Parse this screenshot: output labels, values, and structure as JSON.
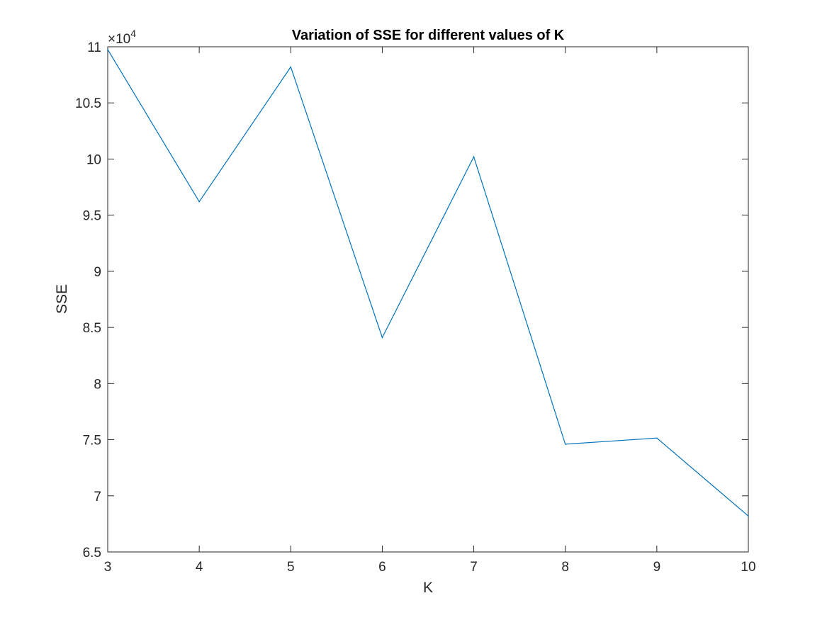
{
  "chart_data": {
    "type": "line",
    "title": "Variation of SSE for different values of K",
    "xlabel": "K",
    "ylabel": "SSE",
    "x": [
      3,
      4,
      5,
      6,
      7,
      8,
      9,
      10
    ],
    "series": [
      {
        "values": [
          109750,
          96200,
          108200,
          84100,
          100200,
          74600,
          75150,
          68200
        ]
      }
    ],
    "xlim": [
      3,
      10
    ],
    "ylim": [
      65000,
      110000
    ],
    "xticks": [
      "3",
      "4",
      "5",
      "6",
      "7",
      "8",
      "9",
      "10"
    ],
    "yticks": [
      "6.5",
      "7",
      "7.5",
      "8",
      "8.5",
      "9",
      "9.5",
      "10",
      "10.5",
      "11"
    ],
    "ytick_values": [
      6.5,
      7,
      7.5,
      8,
      8.5,
      9,
      9.5,
      10,
      10.5,
      11
    ],
    "y_multiplier": {
      "base": "×10",
      "exponent": "4"
    },
    "grid": false,
    "line_color": "#0072BD",
    "axis_color": "#262626"
  }
}
